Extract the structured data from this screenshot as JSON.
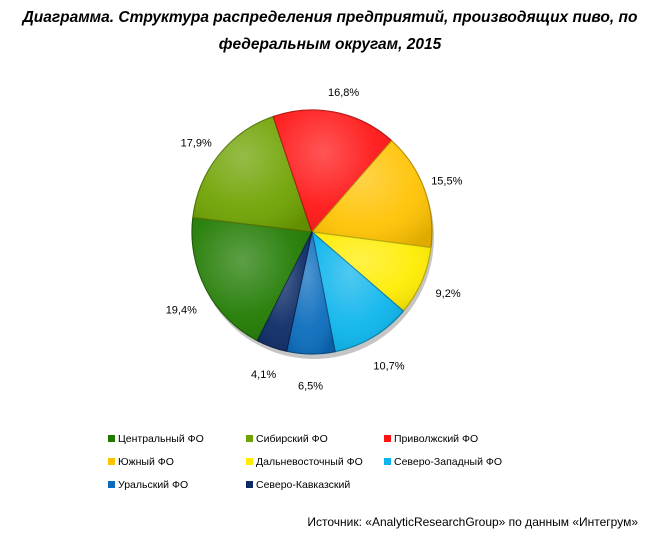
{
  "title": {
    "line1": "Диаграмма. Структура распределения предприятий, производящих пиво, по",
    "line2": "федеральным округам, 2015"
  },
  "chart_data": {
    "type": "pie",
    "slices": [
      {
        "name": "Центральный ФО",
        "value": 19.4,
        "label": "19,4%",
        "color": "#1f7a00"
      },
      {
        "name": "Сибирский ФО",
        "value": 17.9,
        "label": "17,9%",
        "color": "#6ea200"
      },
      {
        "name": "Приволжский ФО",
        "value": 16.8,
        "label": "16,8%",
        "color": "#ff1414"
      },
      {
        "name": "Южный ФО",
        "value": 15.5,
        "label": "15,5%",
        "color": "#ffc200"
      },
      {
        "name": "Дальневосточный ФО",
        "value": 9.2,
        "label": "9,2%",
        "color": "#ffec00"
      },
      {
        "name": "Северо-Западный ФО",
        "value": 10.7,
        "label": "10,7%",
        "color": "#0ab4ec"
      },
      {
        "name": "Уральский ФО",
        "value": 6.5,
        "label": "6,5%",
        "color": "#0a6cbd"
      },
      {
        "name": "Северо-Кавказский",
        "value": 4.1,
        "label": "4,1%",
        "color": "#0b2a66"
      }
    ],
    "legend_position": "bottom"
  },
  "source": "Источник: «AnalyticResearchGroup» по данным «Интегрум»"
}
